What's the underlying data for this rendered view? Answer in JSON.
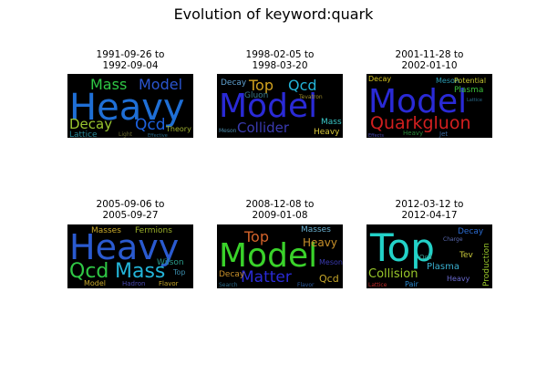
{
  "figure": {
    "title": "Evolution of keyword:quark"
  },
  "chart_data": {
    "type": "wordcloud",
    "panels": [
      {
        "title_line1": "1991-09-26 to",
        "title_line2": "1992-09-04",
        "words": [
          {
            "text": "Heavy",
            "color": "#1f6fd6"
          },
          {
            "text": "Mass",
            "color": "#2fc845"
          },
          {
            "text": "Model",
            "color": "#2a55d0"
          },
          {
            "text": "Decay",
            "color": "#9ac62f"
          },
          {
            "text": "Qcd",
            "color": "#1d62e0"
          },
          {
            "text": "Lattice",
            "color": "#2a8a9a"
          },
          {
            "text": "Theory",
            "color": "#a0b030"
          },
          {
            "text": "Light",
            "color": "#6a6a30"
          },
          {
            "text": "Effective",
            "color": "#2a6a8a"
          }
        ]
      },
      {
        "title_line1": "1998-02-05 to",
        "title_line2": "1998-03-20",
        "words": [
          {
            "text": "Model",
            "color": "#2a2ad6"
          },
          {
            "text": "Top",
            "color": "#d2a21f"
          },
          {
            "text": "Qcd",
            "color": "#23b4d8"
          },
          {
            "text": "Decay",
            "color": "#5fa0d0"
          },
          {
            "text": "Gluon",
            "color": "#3a7a8a"
          },
          {
            "text": "Tevatron",
            "color": "#9a8a2a"
          },
          {
            "text": "Collider",
            "color": "#3a3ab0"
          },
          {
            "text": "Mass",
            "color": "#3ac8c8"
          },
          {
            "text": "Heavy",
            "color": "#d8c83a"
          },
          {
            "text": "Meson",
            "color": "#4a8aaa"
          }
        ]
      },
      {
        "title_line1": "2001-11-28 to",
        "title_line2": "2002-01-10",
        "words": [
          {
            "text": "Model",
            "color": "#2a2ad6"
          },
          {
            "text": "Quarkgluon",
            "color": "#d21f1f"
          },
          {
            "text": "Decay",
            "color": "#d2c21f"
          },
          {
            "text": "Meson",
            "color": "#2a9ab0"
          },
          {
            "text": "Potential",
            "color": "#c0c030"
          },
          {
            "text": "Plasma",
            "color": "#3ac03a"
          },
          {
            "text": "Heavy",
            "color": "#2a8a3a"
          },
          {
            "text": "Effects",
            "color": "#4a4ab0"
          },
          {
            "text": "Jet",
            "color": "#3a6aa0"
          },
          {
            "text": "Lattice",
            "color": "#2a6a8a"
          }
        ]
      },
      {
        "title_line1": "2005-09-06 to",
        "title_line2": "2005-09-27",
        "words": [
          {
            "text": "Heavy",
            "color": "#2a5ad0"
          },
          {
            "text": "Masses",
            "color": "#c8a82a"
          },
          {
            "text": "Fermions",
            "color": "#9ab02a"
          },
          {
            "text": "Qcd",
            "color": "#2fc845"
          },
          {
            "text": "Mass",
            "color": "#23b4d8"
          },
          {
            "text": "Wilson",
            "color": "#2a9a8a"
          },
          {
            "text": "Model",
            "color": "#c8a82a"
          },
          {
            "text": "Hadron",
            "color": "#4a4ab0"
          },
          {
            "text": "Flavor",
            "color": "#c8a82a"
          },
          {
            "text": "Top",
            "color": "#3a8aaa"
          }
        ]
      },
      {
        "title_line1": "2008-12-08 to",
        "title_line2": "2009-01-08",
        "words": [
          {
            "text": "Model",
            "color": "#3ad22a"
          },
          {
            "text": "Top",
            "color": "#d2622a"
          },
          {
            "text": "Masses",
            "color": "#6ab0d0"
          },
          {
            "text": "Heavy",
            "color": "#c8902a"
          },
          {
            "text": "Matter",
            "color": "#2a2ad6"
          },
          {
            "text": "Qcd",
            "color": "#c8a82a"
          },
          {
            "text": "Decay",
            "color": "#c8902a"
          },
          {
            "text": "Meson",
            "color": "#3a3ab0"
          },
          {
            "text": "Flavor",
            "color": "#2a5aa0"
          },
          {
            "text": "Search",
            "color": "#2a6a8a"
          }
        ]
      },
      {
        "title_line1": "2012-03-12 to",
        "title_line2": "2012-04-17",
        "words": [
          {
            "text": "Top",
            "color": "#23d2c8"
          },
          {
            "text": "Collision",
            "color": "#9ac82a"
          },
          {
            "text": "Plasma",
            "color": "#3ab0d0"
          },
          {
            "text": "Production",
            "color": "#9ac82a"
          },
          {
            "text": "Decay",
            "color": "#2a6ad0"
          },
          {
            "text": "Tev",
            "color": "#c8c83a"
          },
          {
            "text": "Heavy",
            "color": "#6a6ad0"
          },
          {
            "text": "Qcd",
            "color": "#3a9a8a"
          },
          {
            "text": "Pair",
            "color": "#2a8ad0"
          },
          {
            "text": "Charge",
            "color": "#5a6ab0"
          },
          {
            "text": "Lattice",
            "color": "#c02a2a"
          }
        ]
      }
    ]
  }
}
